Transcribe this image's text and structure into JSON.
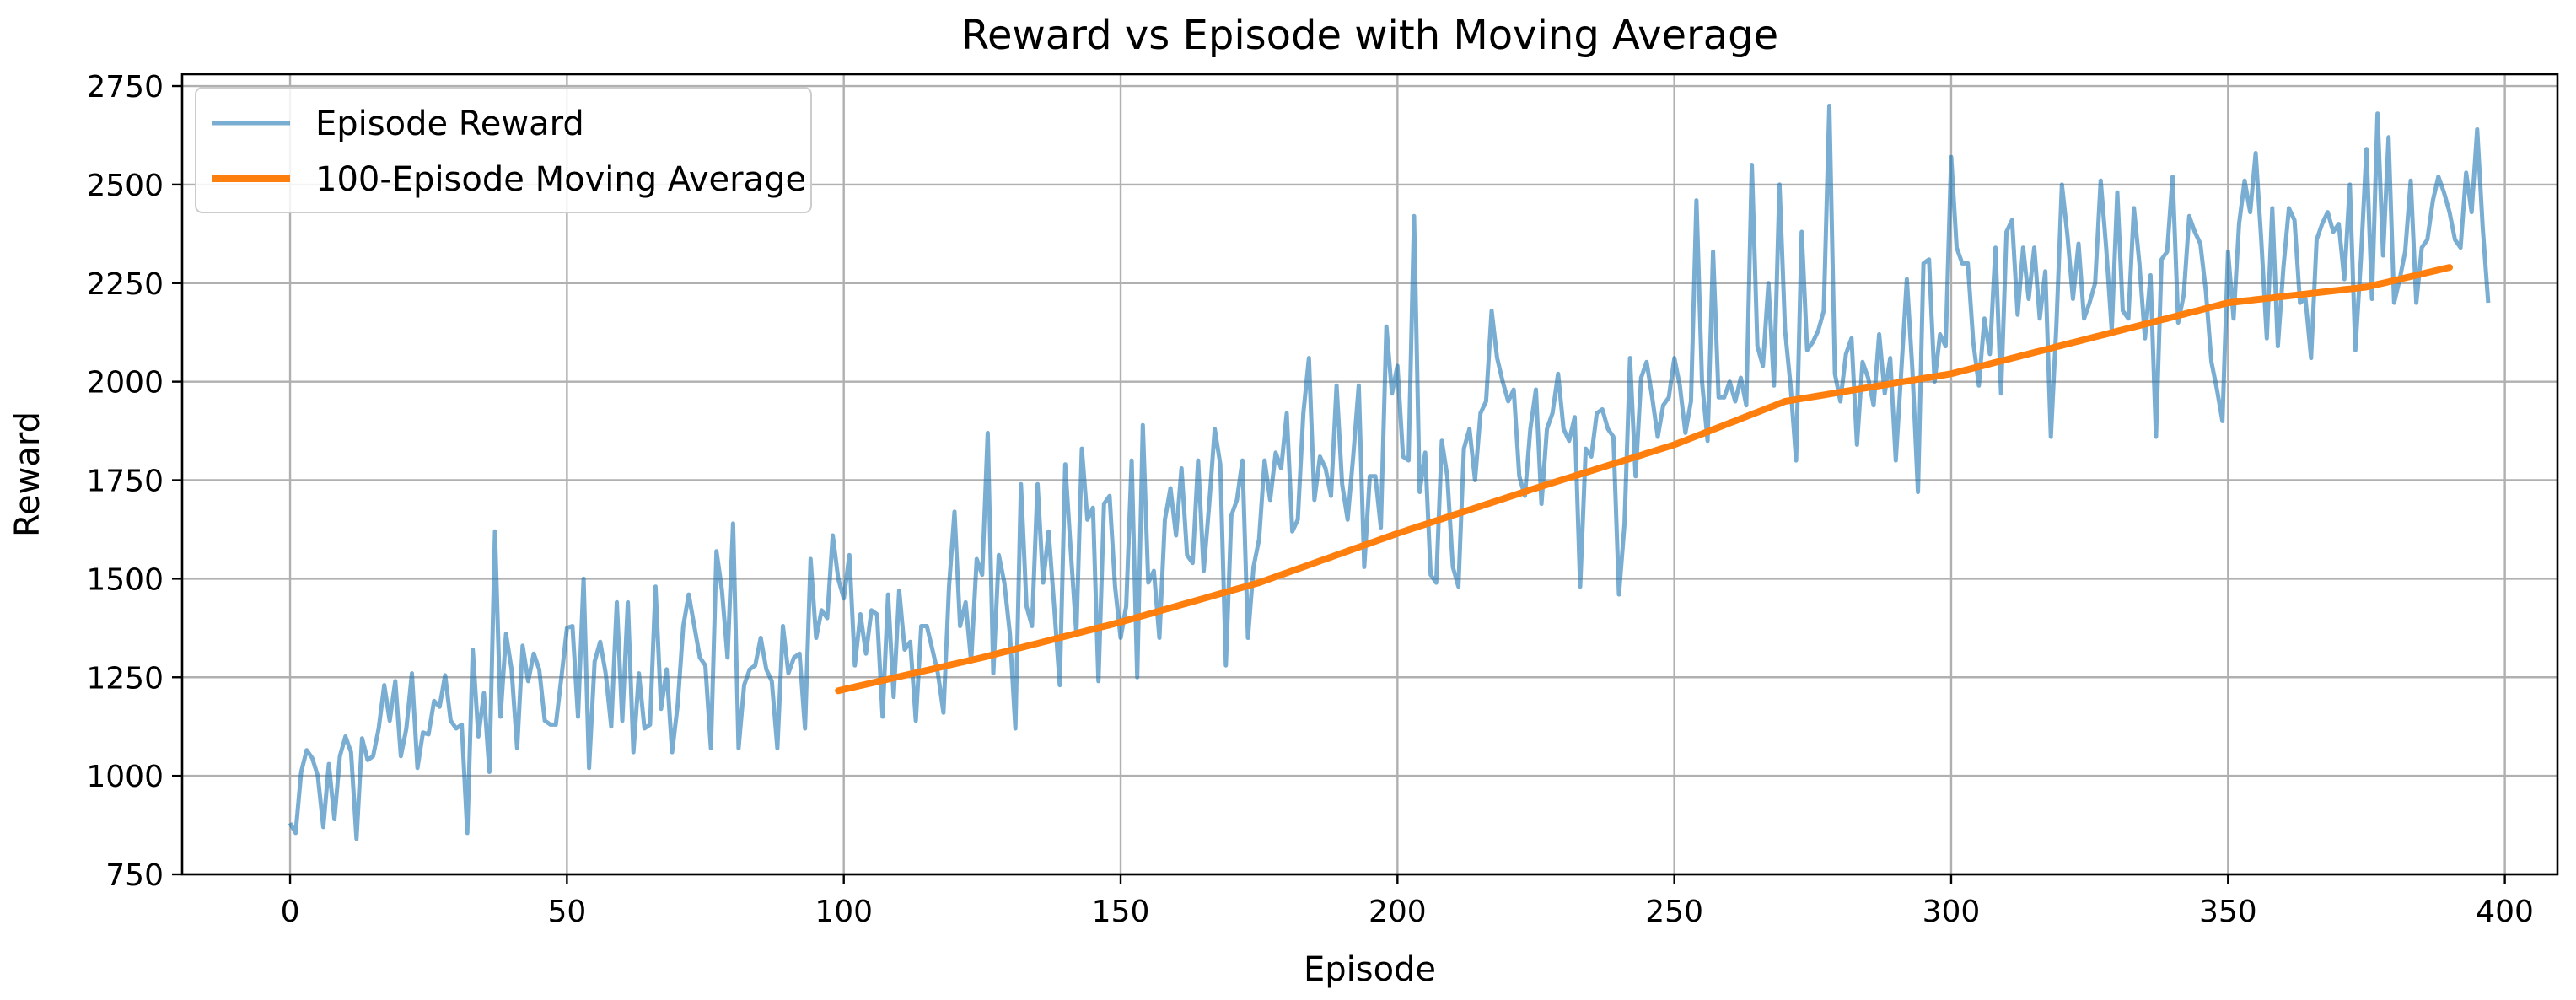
{
  "chart_data": {
    "type": "line",
    "title": "Reward vs Episode with Moving Average",
    "xlabel": "Episode",
    "ylabel": "Reward",
    "xlim": [
      -19.5,
      409.5
    ],
    "ylim": [
      750,
      2780
    ],
    "x_ticks": [
      0,
      50,
      100,
      150,
      200,
      250,
      300,
      350,
      400
    ],
    "y_ticks": [
      750,
      1000,
      1250,
      1500,
      1750,
      2000,
      2250,
      2500,
      2750
    ],
    "grid": true,
    "legend_position": "top-left",
    "colors": {
      "reward": "#1f77b4",
      "moving_average": "#ff7f0e",
      "grid": "#b0b0b0"
    },
    "series": [
      {
        "name": "Episode Reward",
        "x_start": 0,
        "values": [
          880,
          855,
          1010,
          1065,
          1045,
          1000,
          870,
          1030,
          890,
          1050,
          1100,
          1060,
          840,
          1095,
          1040,
          1050,
          1120,
          1230,
          1140,
          1240,
          1050,
          1120,
          1260,
          1020,
          1110,
          1105,
          1190,
          1175,
          1255,
          1140,
          1120,
          1130,
          855,
          1320,
          1100,
          1210,
          1010,
          1620,
          1150,
          1360,
          1270,
          1070,
          1330,
          1240,
          1310,
          1270,
          1140,
          1130,
          1130,
          1250,
          1375,
          1380,
          1150,
          1500,
          1020,
          1290,
          1340,
          1260,
          1125,
          1440,
          1140,
          1440,
          1060,
          1260,
          1120,
          1130,
          1480,
          1170,
          1270,
          1060,
          1180,
          1380,
          1460,
          1380,
          1300,
          1280,
          1070,
          1570,
          1470,
          1300,
          1640,
          1070,
          1230,
          1270,
          1280,
          1350,
          1270,
          1240,
          1070,
          1380,
          1260,
          1300,
          1310,
          1120,
          1550,
          1350,
          1420,
          1400,
          1610,
          1500,
          1450,
          1560,
          1280,
          1410,
          1310,
          1420,
          1410,
          1150,
          1460,
          1200,
          1470,
          1320,
          1340,
          1140,
          1380,
          1380,
          1320,
          1260,
          1160,
          1480,
          1670,
          1380,
          1440,
          1290,
          1550,
          1510,
          1870,
          1260,
          1560,
          1490,
          1360,
          1120,
          1740,
          1430,
          1380,
          1740,
          1490,
          1620,
          1430,
          1230,
          1790,
          1570,
          1360,
          1830,
          1650,
          1680,
          1240,
          1690,
          1710,
          1480,
          1350,
          1430,
          1800,
          1250,
          1890,
          1490,
          1520,
          1350,
          1650,
          1730,
          1610,
          1780,
          1560,
          1540,
          1800,
          1520,
          1690,
          1880,
          1790,
          1280,
          1660,
          1700,
          1800,
          1350,
          1530,
          1600,
          1800,
          1700,
          1820,
          1780,
          1920,
          1620,
          1650,
          1920,
          2060,
          1700,
          1810,
          1780,
          1710,
          1990,
          1740,
          1650,
          1810,
          1990,
          1530,
          1760,
          1760,
          1630,
          2140,
          1970,
          2040,
          1810,
          1800,
          2420,
          1720,
          1820,
          1510,
          1490,
          1850,
          1760,
          1530,
          1480,
          1830,
          1880,
          1750,
          1920,
          1950,
          2180,
          2060,
          2000,
          1950,
          1980,
          1760,
          1710,
          1880,
          1980,
          1690,
          1880,
          1920,
          2020,
          1880,
          1850,
          1910,
          1480,
          1830,
          1810,
          1920,
          1930,
          1880,
          1860,
          1460,
          1640,
          2060,
          1760,
          2010,
          2050,
          1960,
          1860,
          1940,
          1960,
          2060,
          1990,
          1870,
          1950,
          2460,
          2000,
          1850,
          2330,
          1960,
          1960,
          2000,
          1950,
          2010,
          1940,
          2550,
          2090,
          2040,
          2250,
          1990,
          2500,
          2130,
          1990,
          1800,
          2380,
          2080,
          2100,
          2130,
          2180,
          2700,
          2020,
          1950,
          2070,
          2110,
          1840,
          2050,
          2010,
          1940,
          2120,
          1970,
          2060,
          1800,
          2030,
          2260,
          2030,
          1720,
          2300,
          2310,
          2000,
          2120,
          2090,
          2570,
          2340,
          2300,
          2300,
          2100,
          1990,
          2160,
          2070,
          2340,
          1970,
          2380,
          2410,
          2170,
          2340,
          2210,
          2340,
          2160,
          2280,
          1860,
          2140,
          2500,
          2370,
          2210,
          2350,
          2160,
          2200,
          2250,
          2510,
          2340,
          2130,
          2480,
          2180,
          2160,
          2440,
          2300,
          2110,
          2270,
          1860,
          2310,
          2330,
          2520,
          2150,
          2220,
          2420,
          2380,
          2350,
          2230,
          2050,
          1980,
          1900,
          2330,
          2160,
          2400,
          2510,
          2430,
          2580,
          2360,
          2110,
          2440,
          2090,
          2290,
          2440,
          2410,
          2200,
          2210,
          2060,
          2360,
          2400,
          2430,
          2380,
          2400,
          2260,
          2500,
          2080,
          2310,
          2590,
          2210,
          2680,
          2320,
          2620,
          2200,
          2260,
          2330,
          2510,
          2200,
          2340,
          2360,
          2460,
          2520,
          2480,
          2430,
          2360,
          2340,
          2530,
          2430,
          2640,
          2390,
          2200
        ]
      },
      {
        "name": "100-Episode Moving Average",
        "x_start": 99,
        "keypoints": [
          [
            99,
            1216
          ],
          [
            125,
            1300
          ],
          [
            150,
            1390
          ],
          [
            175,
            1490
          ],
          [
            200,
            1615
          ],
          [
            225,
            1730
          ],
          [
            250,
            1840
          ],
          [
            270,
            1950
          ],
          [
            300,
            2020
          ],
          [
            325,
            2110
          ],
          [
            350,
            2200
          ],
          [
            375,
            2240
          ],
          [
            390,
            2290
          ]
        ]
      }
    ]
  }
}
